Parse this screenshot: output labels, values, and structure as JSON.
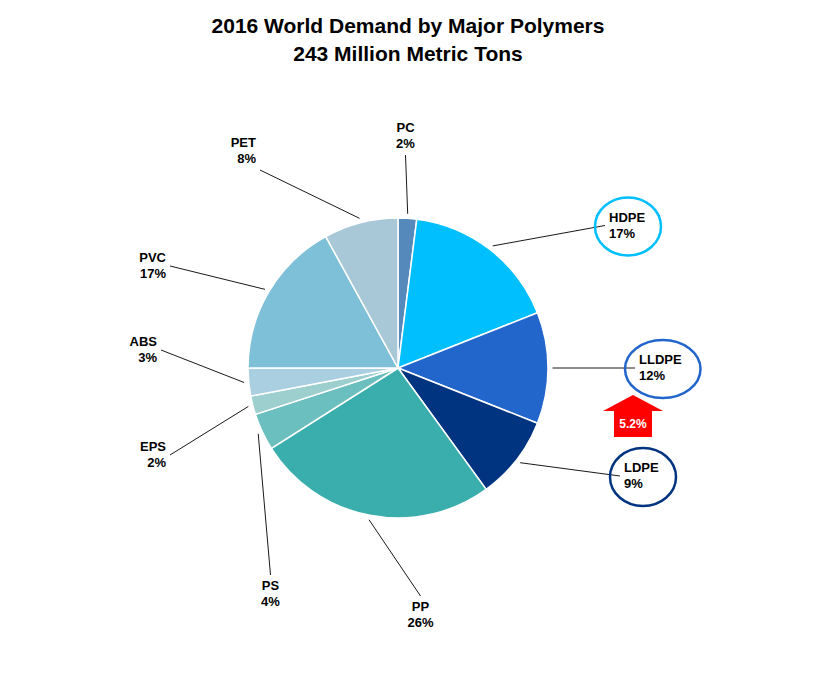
{
  "chart_data": {
    "type": "pie",
    "title": "2016 World Demand by Major Polymers",
    "subtitle": "243 Million Metric Tons",
    "categories": [
      "PC",
      "HDPE",
      "LLDPE",
      "LDPE",
      "PP",
      "PS",
      "EPS",
      "ABS",
      "PVC",
      "PET"
    ],
    "values": [
      2,
      17,
      12,
      9,
      26,
      4,
      2,
      3,
      17,
      8
    ],
    "value_labels": [
      "2%",
      "17%",
      "12%",
      "9%",
      "26%",
      "4%",
      "2%",
      "3%",
      "17%",
      "8%"
    ],
    "colors": [
      "#5588BB",
      "#00BFFF",
      "#2266CC",
      "#003380",
      "#3AADAD",
      "#6BBFBF",
      "#9DCFCF",
      "#AACFE0",
      "#7EC0D8",
      "#A8C8D8"
    ],
    "data_labels": true,
    "annotations": [
      {
        "text": "5.2%",
        "color": "#FF0000"
      }
    ]
  }
}
